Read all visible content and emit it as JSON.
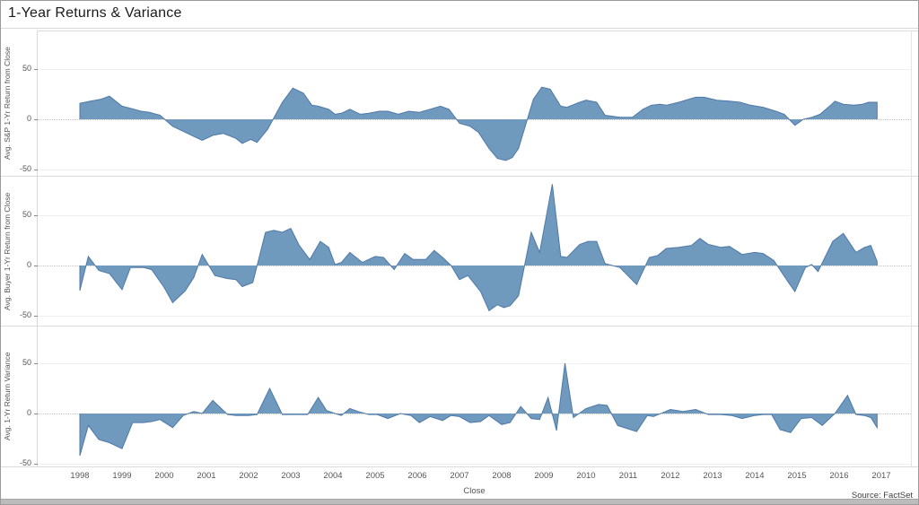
{
  "chart_data": {
    "type": "area",
    "title": "1-Year Returns & Variance",
    "xlabel": "Close",
    "x_unit": "year (decimal, quarterly points)",
    "x_range": [
      1998,
      2017
    ],
    "x_ticks": [
      "1998",
      "1999",
      "2000",
      "2001",
      "2002",
      "2003",
      "2004",
      "2005",
      "2006",
      "2007",
      "2008",
      "2009",
      "2010",
      "2011",
      "2012",
      "2013",
      "2014",
      "2015",
      "2016",
      "2017"
    ],
    "y_ticks": [
      50,
      0,
      -50
    ],
    "ylim": [
      -60,
      90
    ],
    "grid": "light horizontal lines at +50/-50, dotted line at 0",
    "legend": "none",
    "fill_color": "#7099be",
    "line_color": "#4e79a7",
    "source": "Source: FactSet",
    "panels": [
      {
        "ylabel": "Avg. S&P 1-Yr Return from Close",
        "points": [
          [
            1998.0,
            16
          ],
          [
            1998.25,
            18
          ],
          [
            1998.5,
            20
          ],
          [
            1998.7,
            23
          ],
          [
            1999.0,
            13
          ],
          [
            1999.2,
            11
          ],
          [
            1999.45,
            8
          ],
          [
            1999.65,
            7
          ],
          [
            1999.9,
            4
          ],
          [
            2000.2,
            -7
          ],
          [
            2000.45,
            -12
          ],
          [
            2000.65,
            -16
          ],
          [
            2000.9,
            -21
          ],
          [
            2001.15,
            -16
          ],
          [
            2001.4,
            -14
          ],
          [
            2001.7,
            -19
          ],
          [
            2001.85,
            -24
          ],
          [
            2002.05,
            -20
          ],
          [
            2002.2,
            -23
          ],
          [
            2002.45,
            -10
          ],
          [
            2002.8,
            17
          ],
          [
            2003.05,
            31
          ],
          [
            2003.3,
            26
          ],
          [
            2003.5,
            14
          ],
          [
            2003.65,
            13
          ],
          [
            2003.9,
            10
          ],
          [
            2004.05,
            5
          ],
          [
            2004.2,
            6
          ],
          [
            2004.4,
            10
          ],
          [
            2004.65,
            5
          ],
          [
            2004.85,
            6
          ],
          [
            2005.1,
            8
          ],
          [
            2005.3,
            8
          ],
          [
            2005.55,
            5
          ],
          [
            2005.8,
            8
          ],
          [
            2006.05,
            7
          ],
          [
            2006.3,
            10
          ],
          [
            2006.55,
            13
          ],
          [
            2006.75,
            10
          ],
          [
            2007.0,
            -4
          ],
          [
            2007.25,
            -7
          ],
          [
            2007.45,
            -13
          ],
          [
            2007.7,
            -29
          ],
          [
            2007.9,
            -39
          ],
          [
            2008.1,
            -41
          ],
          [
            2008.25,
            -38
          ],
          [
            2008.4,
            -29
          ],
          [
            2008.75,
            20
          ],
          [
            2008.95,
            32
          ],
          [
            2009.15,
            30
          ],
          [
            2009.4,
            13
          ],
          [
            2009.55,
            12
          ],
          [
            2009.85,
            17
          ],
          [
            2010.0,
            19
          ],
          [
            2010.25,
            17
          ],
          [
            2010.45,
            4
          ],
          [
            2010.8,
            2
          ],
          [
            2011.1,
            2
          ],
          [
            2011.35,
            10
          ],
          [
            2011.55,
            14
          ],
          [
            2011.75,
            15
          ],
          [
            2011.9,
            14
          ],
          [
            2012.2,
            17
          ],
          [
            2012.6,
            22
          ],
          [
            2012.8,
            22
          ],
          [
            2013.1,
            19
          ],
          [
            2013.4,
            18
          ],
          [
            2013.65,
            17
          ],
          [
            2013.9,
            14
          ],
          [
            2014.2,
            12
          ],
          [
            2014.5,
            8
          ],
          [
            2014.7,
            5
          ],
          [
            2014.95,
            -6
          ],
          [
            2015.15,
            0
          ],
          [
            2015.35,
            2
          ],
          [
            2015.55,
            5
          ],
          [
            2015.8,
            14
          ],
          [
            2015.9,
            18
          ],
          [
            2016.1,
            15
          ],
          [
            2016.35,
            14
          ],
          [
            2016.55,
            15
          ],
          [
            2016.7,
            17
          ],
          [
            2016.9,
            17
          ]
        ]
      },
      {
        "ylabel": "Avg. Buyer 1-Yr Return from Close",
        "points": [
          [
            1998.0,
            -25
          ],
          [
            1998.2,
            9
          ],
          [
            1998.45,
            -5
          ],
          [
            1998.7,
            -8
          ],
          [
            1999.0,
            -24
          ],
          [
            1999.2,
            -2
          ],
          [
            1999.5,
            -2
          ],
          [
            1999.7,
            -4
          ],
          [
            2000.0,
            -22
          ],
          [
            2000.2,
            -37
          ],
          [
            2000.5,
            -25
          ],
          [
            2000.7,
            -12
          ],
          [
            2000.9,
            11
          ],
          [
            2001.2,
            -10
          ],
          [
            2001.5,
            -13
          ],
          [
            2001.7,
            -14
          ],
          [
            2001.85,
            -21
          ],
          [
            2002.1,
            -17
          ],
          [
            2002.4,
            33
          ],
          [
            2002.6,
            35
          ],
          [
            2002.8,
            33
          ],
          [
            2003.0,
            37
          ],
          [
            2003.2,
            20
          ],
          [
            2003.45,
            6
          ],
          [
            2003.7,
            24
          ],
          [
            2003.9,
            18
          ],
          [
            2004.05,
            1
          ],
          [
            2004.2,
            3
          ],
          [
            2004.4,
            13
          ],
          [
            2004.7,
            3
          ],
          [
            2005.0,
            9
          ],
          [
            2005.2,
            8
          ],
          [
            2005.45,
            -4
          ],
          [
            2005.7,
            12
          ],
          [
            2005.9,
            6
          ],
          [
            2006.2,
            6
          ],
          [
            2006.4,
            15
          ],
          [
            2006.6,
            8
          ],
          [
            2006.8,
            0
          ],
          [
            2007.0,
            -14
          ],
          [
            2007.2,
            -10
          ],
          [
            2007.5,
            -26
          ],
          [
            2007.7,
            -45
          ],
          [
            2007.9,
            -39
          ],
          [
            2008.05,
            -42
          ],
          [
            2008.2,
            -40
          ],
          [
            2008.4,
            -30
          ],
          [
            2008.7,
            33
          ],
          [
            2008.9,
            13
          ],
          [
            2009.2,
            81
          ],
          [
            2009.4,
            9
          ],
          [
            2009.55,
            8
          ],
          [
            2009.85,
            21
          ],
          [
            2010.05,
            24
          ],
          [
            2010.25,
            24
          ],
          [
            2010.45,
            2
          ],
          [
            2010.8,
            -2
          ],
          [
            2011.2,
            -19
          ],
          [
            2011.5,
            8
          ],
          [
            2011.7,
            10
          ],
          [
            2011.9,
            17
          ],
          [
            2012.2,
            18
          ],
          [
            2012.5,
            20
          ],
          [
            2012.7,
            27
          ],
          [
            2012.9,
            21
          ],
          [
            2013.2,
            18
          ],
          [
            2013.4,
            19
          ],
          [
            2013.7,
            11
          ],
          [
            2014.0,
            13
          ],
          [
            2014.2,
            12
          ],
          [
            2014.45,
            5
          ],
          [
            2014.8,
            -17
          ],
          [
            2014.95,
            -26
          ],
          [
            2015.2,
            -2
          ],
          [
            2015.35,
            1
          ],
          [
            2015.5,
            -6
          ],
          [
            2015.85,
            24
          ],
          [
            2016.1,
            32
          ],
          [
            2016.4,
            13
          ],
          [
            2016.6,
            18
          ],
          [
            2016.75,
            20
          ],
          [
            2016.9,
            4
          ]
        ]
      },
      {
        "ylabel": "Avg. 1-Yr Return Variance",
        "points": [
          [
            1998.0,
            -42
          ],
          [
            1998.2,
            -12
          ],
          [
            1998.45,
            -26
          ],
          [
            1998.7,
            -29
          ],
          [
            1999.0,
            -35
          ],
          [
            1999.25,
            -9
          ],
          [
            1999.5,
            -9
          ],
          [
            1999.7,
            -8
          ],
          [
            1999.9,
            -6
          ],
          [
            2000.2,
            -14
          ],
          [
            2000.45,
            -2
          ],
          [
            2000.7,
            2
          ],
          [
            2000.9,
            0
          ],
          [
            2001.15,
            13
          ],
          [
            2001.5,
            -1
          ],
          [
            2001.7,
            -2
          ],
          [
            2002.0,
            -2
          ],
          [
            2002.2,
            -1
          ],
          [
            2002.5,
            25
          ],
          [
            2002.8,
            -1
          ],
          [
            2003.1,
            -1
          ],
          [
            2003.4,
            -1
          ],
          [
            2003.65,
            16
          ],
          [
            2003.85,
            3
          ],
          [
            2004.05,
            0
          ],
          [
            2004.2,
            -2
          ],
          [
            2004.4,
            5
          ],
          [
            2004.6,
            2
          ],
          [
            2004.85,
            -1
          ],
          [
            2005.05,
            -1
          ],
          [
            2005.3,
            -5
          ],
          [
            2005.6,
            0
          ],
          [
            2005.85,
            -2
          ],
          [
            2006.05,
            -9
          ],
          [
            2006.3,
            -3
          ],
          [
            2006.6,
            -7
          ],
          [
            2006.8,
            -2
          ],
          [
            2007.0,
            -3
          ],
          [
            2007.25,
            -9
          ],
          [
            2007.5,
            -8
          ],
          [
            2007.7,
            -2
          ],
          [
            2008.0,
            -11
          ],
          [
            2008.2,
            -9
          ],
          [
            2008.45,
            7
          ],
          [
            2008.7,
            -5
          ],
          [
            2008.9,
            -6
          ],
          [
            2009.1,
            16
          ],
          [
            2009.3,
            -17
          ],
          [
            2009.5,
            50
          ],
          [
            2009.7,
            -4
          ],
          [
            2010.0,
            5
          ],
          [
            2010.3,
            9
          ],
          [
            2010.5,
            8
          ],
          [
            2010.75,
            -12
          ],
          [
            2011.2,
            -18
          ],
          [
            2011.45,
            -2
          ],
          [
            2011.6,
            -3
          ],
          [
            2012.0,
            4
          ],
          [
            2012.3,
            2
          ],
          [
            2012.6,
            4
          ],
          [
            2012.9,
            -1
          ],
          [
            2013.2,
            -1
          ],
          [
            2013.45,
            -2
          ],
          [
            2013.7,
            -5
          ],
          [
            2014.0,
            -2
          ],
          [
            2014.2,
            -1
          ],
          [
            2014.4,
            -1
          ],
          [
            2014.6,
            -16
          ],
          [
            2014.85,
            -19
          ],
          [
            2015.1,
            -5
          ],
          [
            2015.35,
            -4
          ],
          [
            2015.6,
            -12
          ],
          [
            2015.9,
            0
          ],
          [
            2016.2,
            18
          ],
          [
            2016.4,
            -1
          ],
          [
            2016.6,
            -2
          ],
          [
            2016.75,
            -4
          ],
          [
            2016.9,
            -14
          ]
        ]
      }
    ]
  }
}
